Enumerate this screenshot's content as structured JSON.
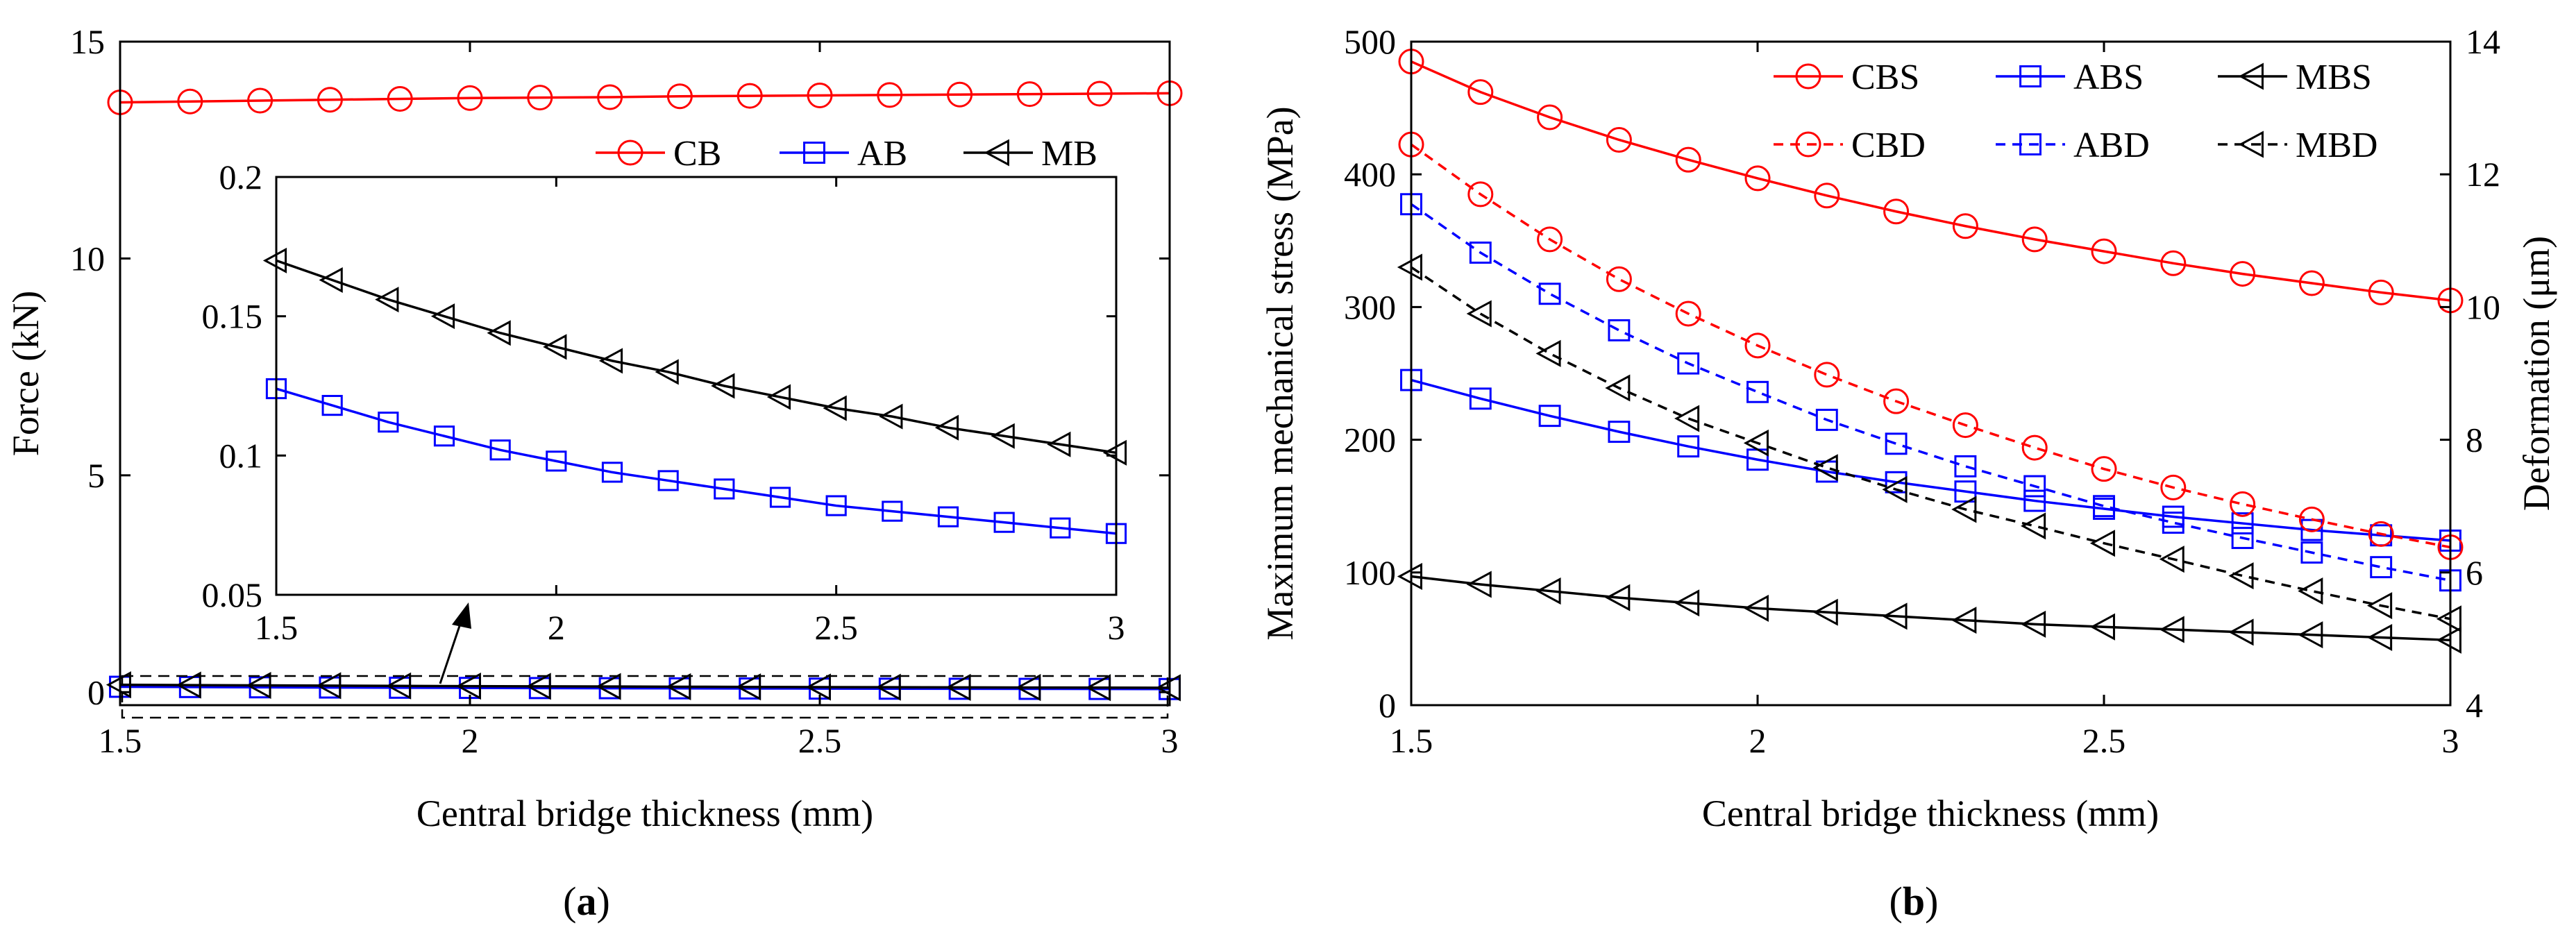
{
  "figure": {
    "label_a_open": "(",
    "label_a_letter": "a",
    "label_a_close": ")",
    "label_b_open": "(",
    "label_b_letter": "b",
    "label_b_close": ")"
  },
  "chart_data": [
    {
      "id": "a",
      "type": "line",
      "xlabel": "Central bridge thickness (mm)",
      "ylabel": "Force (kN)",
      "xlim": [
        1.5,
        3
      ],
      "ylim": [
        -0.3,
        15
      ],
      "xticks": [
        1.5,
        2,
        2.5,
        3
      ],
      "xtick_labels": [
        "1.5",
        "2",
        "2.5",
        "3"
      ],
      "yticks": [
        0,
        5,
        10,
        15
      ],
      "ytick_labels": [
        "0",
        "5",
        "10",
        "15"
      ],
      "grid": false,
      "legend_placement": "inside-top-right",
      "series": [
        {
          "name": "CB",
          "color": "#ff0000",
          "marker": "circle",
          "dash": "solid",
          "x": [
            1.5,
            1.6,
            1.7,
            1.8,
            1.9,
            2.0,
            2.1,
            2.2,
            2.3,
            2.4,
            2.5,
            2.6,
            2.7,
            2.8,
            2.9,
            3.0
          ],
          "values": [
            13.6,
            13.62,
            13.64,
            13.66,
            13.68,
            13.7,
            13.71,
            13.72,
            13.74,
            13.75,
            13.76,
            13.77,
            13.78,
            13.79,
            13.8,
            13.81
          ]
        },
        {
          "name": "AB",
          "color": "#0000ff",
          "marker": "square",
          "dash": "solid",
          "x": [
            1.5,
            1.6,
            1.7,
            1.8,
            1.9,
            2.0,
            2.1,
            2.2,
            2.3,
            2.4,
            2.5,
            2.6,
            2.7,
            2.8,
            2.9,
            3.0
          ],
          "values": [
            0.124,
            0.118,
            0.112,
            0.107,
            0.102,
            0.098,
            0.094,
            0.091,
            0.088,
            0.085,
            0.082,
            0.08,
            0.078,
            0.076,
            0.074,
            0.072
          ]
        },
        {
          "name": "MB",
          "color": "#000000",
          "marker": "triangle-left",
          "dash": "solid",
          "x": [
            1.5,
            1.6,
            1.7,
            1.8,
            1.9,
            2.0,
            2.1,
            2.2,
            2.3,
            2.4,
            2.5,
            2.6,
            2.7,
            2.8,
            2.9,
            3.0
          ],
          "values": [
            0.17,
            0.163,
            0.156,
            0.15,
            0.144,
            0.139,
            0.134,
            0.13,
            0.125,
            0.121,
            0.117,
            0.114,
            0.11,
            0.107,
            0.104,
            0.101
          ]
        }
      ],
      "inset": {
        "xlim": [
          1.5,
          3
        ],
        "ylim": [
          0.05,
          0.2
        ],
        "xticks": [
          1.5,
          2,
          2.5,
          3
        ],
        "xtick_labels": [
          "1.5",
          "2",
          "2.5",
          "3"
        ],
        "yticks": [
          0.05,
          0.1,
          0.15,
          0.2
        ],
        "ytick_labels": [
          "0.05",
          "0.1",
          "0.15",
          "0.2"
        ]
      }
    },
    {
      "id": "b",
      "type": "line",
      "xlabel": "Central bridge thickness (mm)",
      "ylabel": "Maximum mechanical stress (MPa)",
      "y2label": "Deformation (μm)",
      "xlim": [
        1.5,
        3
      ],
      "ylim": [
        0,
        500
      ],
      "y2lim": [
        4,
        14
      ],
      "xticks": [
        1.5,
        2,
        2.5,
        3
      ],
      "xtick_labels": [
        "1.5",
        "2",
        "2.5",
        "3"
      ],
      "yticks": [
        0,
        100,
        200,
        300,
        400,
        500
      ],
      "ytick_labels": [
        "0",
        "100",
        "200",
        "300",
        "400",
        "500"
      ],
      "y2ticks": [
        4,
        6,
        8,
        10,
        12,
        14
      ],
      "y2tick_labels": [
        "4",
        "6",
        "8",
        "10",
        "12",
        "14"
      ],
      "grid": false,
      "legend_placement": "top-right",
      "x": [
        1.5,
        1.6,
        1.7,
        1.8,
        1.9,
        2.0,
        2.1,
        2.2,
        2.3,
        2.4,
        2.5,
        2.6,
        2.7,
        2.8,
        2.9,
        3.0
      ],
      "series": [
        {
          "name": "CBS",
          "color": "#ff0000",
          "marker": "circle",
          "dash": "solid",
          "axis": "left",
          "values": [
            485,
            462,
            443,
            426,
            411,
            397,
            384,
            372,
            361,
            351,
            342,
            333,
            325,
            318,
            311,
            305
          ]
        },
        {
          "name": "ABS",
          "color": "#0000ff",
          "marker": "square",
          "dash": "solid",
          "axis": "left",
          "values": [
            245,
            231,
            218,
            206,
            195,
            185,
            176,
            168,
            161,
            154,
            148,
            142,
            137,
            132,
            128,
            124
          ]
        },
        {
          "name": "MBS",
          "color": "#000000",
          "marker": "triangle-left",
          "dash": "solid",
          "axis": "left",
          "values": [
            97,
            91,
            86,
            81,
            77,
            73,
            70,
            67,
            64,
            61,
            59,
            57,
            55,
            53,
            51,
            49
          ]
        },
        {
          "name": "CBD",
          "color": "#ff0000",
          "marker": "circle",
          "dash": "dashed",
          "axis": "right",
          "values": [
            12.45,
            11.7,
            11.02,
            10.42,
            9.9,
            9.42,
            8.98,
            8.58,
            8.22,
            7.88,
            7.56,
            7.28,
            7.03,
            6.8,
            6.58,
            6.38
          ]
        },
        {
          "name": "ABD",
          "color": "#0000ff",
          "marker": "square",
          "dash": "dashed",
          "axis": "right",
          "values": [
            11.55,
            10.82,
            10.2,
            9.65,
            9.15,
            8.72,
            8.3,
            7.94,
            7.6,
            7.3,
            7.0,
            6.75,
            6.52,
            6.3,
            6.08,
            5.88
          ]
        },
        {
          "name": "MBD",
          "color": "#000000",
          "marker": "triangle-left",
          "dash": "dashed",
          "axis": "right",
          "values": [
            10.6,
            9.9,
            9.3,
            8.78,
            8.32,
            7.95,
            7.58,
            7.25,
            6.95,
            6.7,
            6.44,
            6.2,
            5.95,
            5.72,
            5.5,
            5.3
          ]
        }
      ]
    }
  ]
}
